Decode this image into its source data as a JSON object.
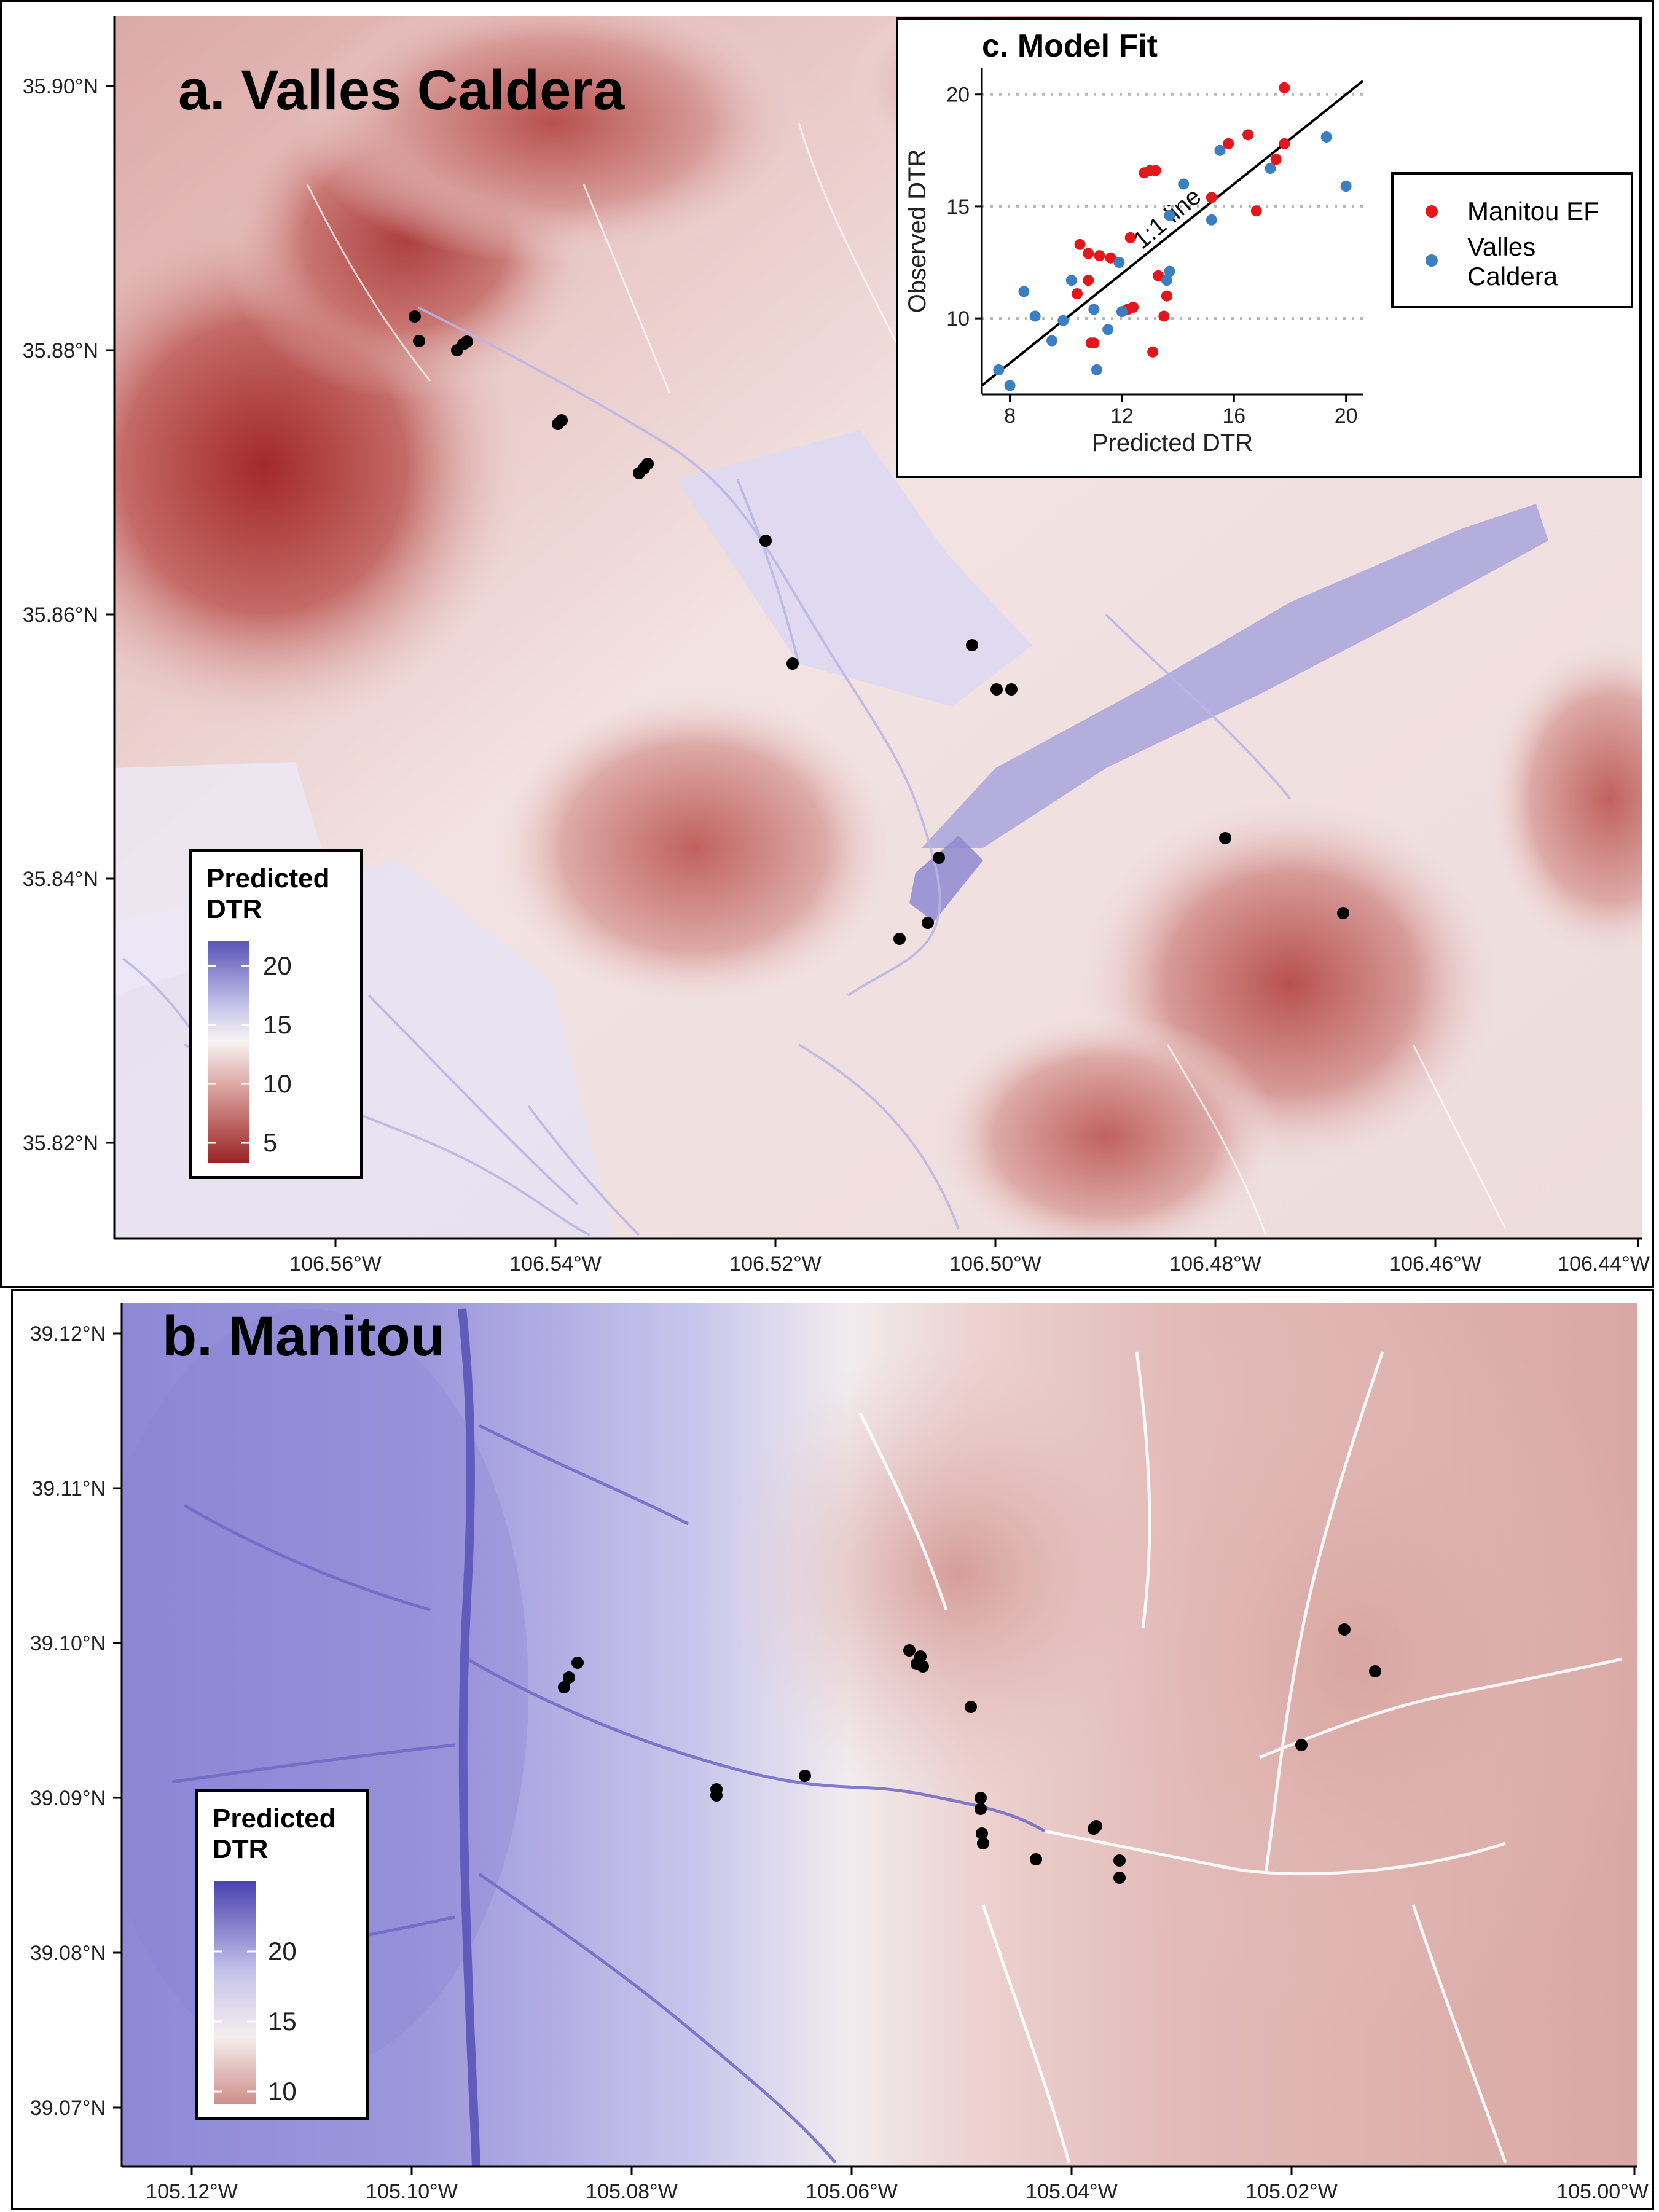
{
  "panel_a": {
    "title": "a. Valles Caldera",
    "y_ticks": [
      "35.90°N",
      "35.88°N",
      "35.86°N",
      "35.84°N",
      "35.82°N"
    ],
    "x_ticks": [
      "106.56°W",
      "106.54°W",
      "106.52°W",
      "106.50°W",
      "106.48°W",
      "106.46°W",
      "106.44°W"
    ],
    "legend": {
      "title_line1": "Predicted",
      "title_line2": "DTR",
      "labels": [
        "20",
        "15",
        "10",
        "5"
      ]
    },
    "colors": {
      "high": "#5a55b8",
      "mid": "#f7f3f3",
      "low": "#a32a2a"
    }
  },
  "panel_b": {
    "title": "b. Manitou",
    "y_ticks": [
      "39.12°N",
      "39.11°N",
      "39.10°N",
      "39.09°N",
      "39.08°N",
      "39.07°N"
    ],
    "x_ticks": [
      "105.12°W",
      "105.10°W",
      "105.08°W",
      "105.06°W",
      "105.04°W",
      "105.02°W",
      "105.00°W"
    ],
    "legend": {
      "title_line1": "Predicted",
      "title_line2": "DTR",
      "labels": [
        "20",
        "15",
        "10"
      ]
    },
    "colors": {
      "high": "#4a43b0",
      "mid": "#f4eeee",
      "low": "#cf8f8a"
    }
  },
  "panel_c": {
    "title": "c. Model Fit",
    "one_to_one_label": "1:1 line",
    "legend": {
      "series1": "Manitou EF",
      "series2_line1": "Valles",
      "series2_line2": "Caldera"
    },
    "chart_data": {
      "type": "scatter",
      "xlabel": "Predicted DTR",
      "ylabel": "Observed DTR",
      "xlim": [
        7,
        20.6
      ],
      "ylim": [
        6.6,
        21.2
      ],
      "x_ticks": [
        8,
        12,
        16,
        20
      ],
      "y_ticks": [
        10,
        15,
        20
      ],
      "gridlines": "y-dotted",
      "series": [
        {
          "name": "Manitou EF",
          "color": "#e4161b",
          "points": [
            [
              17.8,
              20.3
            ],
            [
              16.5,
              18.2
            ],
            [
              15.8,
              17.8
            ],
            [
              17.5,
              17.1
            ],
            [
              17.8,
              17.8
            ],
            [
              12.8,
              16.5
            ],
            [
              13.0,
              16.6
            ],
            [
              13.2,
              16.6
            ],
            [
              15.2,
              15.4
            ],
            [
              16.8,
              14.8
            ],
            [
              12.3,
              13.6
            ],
            [
              10.5,
              13.3
            ],
            [
              10.8,
              12.9
            ],
            [
              11.2,
              12.8
            ],
            [
              11.6,
              12.7
            ],
            [
              10.4,
              11.1
            ],
            [
              10.8,
              11.7
            ],
            [
              12.2,
              10.4
            ],
            [
              12.4,
              10.5
            ],
            [
              13.3,
              11.9
            ],
            [
              13.6,
              11.0
            ],
            [
              13.5,
              10.1
            ],
            [
              10.9,
              8.9
            ],
            [
              11.0,
              8.9
            ],
            [
              13.1,
              8.5
            ]
          ]
        },
        {
          "name": "Valles Caldera",
          "color": "#3a7fbf",
          "points": [
            [
              7.6,
              7.7
            ],
            [
              8.0,
              7.0
            ],
            [
              8.5,
              11.2
            ],
            [
              8.9,
              10.1
            ],
            [
              9.5,
              9.0
            ],
            [
              9.9,
              9.9
            ],
            [
              10.2,
              11.7
            ],
            [
              11.0,
              10.4
            ],
            [
              11.1,
              7.7
            ],
            [
              11.5,
              9.5
            ],
            [
              11.9,
              12.5
            ],
            [
              12.0,
              10.3
            ],
            [
              13.7,
              12.1
            ],
            [
              13.6,
              11.7
            ],
            [
              13.7,
              14.6
            ],
            [
              14.2,
              16.0
            ],
            [
              15.2,
              14.4
            ],
            [
              15.5,
              17.5
            ],
            [
              17.3,
              16.7
            ],
            [
              19.3,
              18.1
            ],
            [
              20.0,
              15.9
            ]
          ]
        }
      ]
    }
  }
}
